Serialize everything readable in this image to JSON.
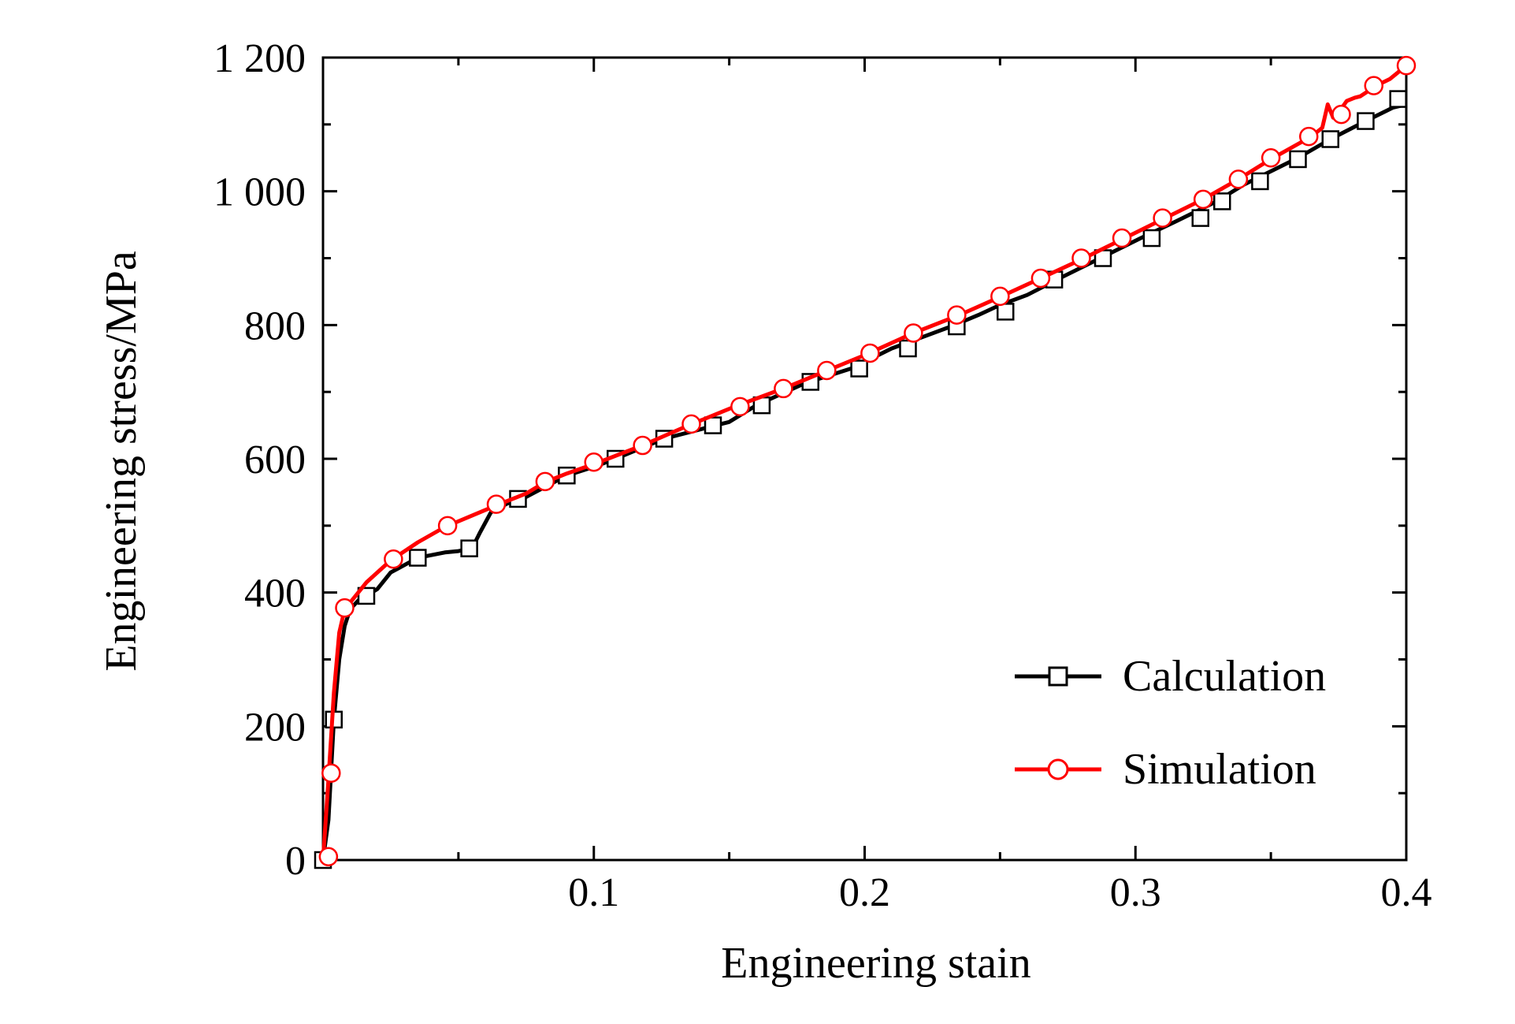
{
  "chart_data": {
    "type": "line",
    "title": "",
    "xlabel": "Engineering stain",
    "ylabel": "Engineering stress/MPa",
    "xlim": [
      0,
      0.4
    ],
    "ylim": [
      0,
      1200
    ],
    "x_ticks": [
      0.1,
      0.2,
      0.3,
      0.4
    ],
    "x_tick_labels": [
      "0.1",
      "0.2",
      "0.3",
      "0.4"
    ],
    "y_ticks": [
      0,
      200,
      400,
      600,
      800,
      1000,
      1200
    ],
    "y_tick_labels": [
      "0",
      "200",
      "400",
      "600",
      "800",
      "1 000",
      "1 200"
    ],
    "grid": false,
    "legend_position": "bottom-right",
    "series": [
      {
        "name": "Calculation",
        "color": "#000000",
        "marker": "square",
        "points": [
          [
            0.0,
            0
          ],
          [
            0.002,
            60
          ],
          [
            0.004,
            210
          ],
          [
            0.006,
            300
          ],
          [
            0.008,
            350
          ],
          [
            0.01,
            375
          ],
          [
            0.013,
            388
          ],
          [
            0.016,
            395
          ],
          [
            0.02,
            405
          ],
          [
            0.025,
            430
          ],
          [
            0.035,
            452
          ],
          [
            0.045,
            460
          ],
          [
            0.05,
            462
          ],
          [
            0.055,
            466
          ],
          [
            0.058,
            490
          ],
          [
            0.062,
            520
          ],
          [
            0.068,
            533
          ],
          [
            0.075,
            543
          ],
          [
            0.09,
            575
          ],
          [
            0.1,
            588
          ],
          [
            0.108,
            600
          ],
          [
            0.126,
            630
          ],
          [
            0.145,
            650
          ],
          [
            0.15,
            655
          ],
          [
            0.16,
            680
          ],
          [
            0.178,
            713
          ],
          [
            0.195,
            735
          ],
          [
            0.2,
            745
          ],
          [
            0.21,
            765
          ],
          [
            0.22,
            780
          ],
          [
            0.232,
            798
          ],
          [
            0.242,
            815
          ],
          [
            0.25,
            830
          ],
          [
            0.26,
            845
          ],
          [
            0.273,
            872
          ],
          [
            0.287,
            900
          ],
          [
            0.302,
            930
          ],
          [
            0.315,
            955
          ],
          [
            0.33,
            985
          ],
          [
            0.34,
            1010
          ],
          [
            0.36,
            1050
          ],
          [
            0.372,
            1078
          ],
          [
            0.385,
            1105
          ],
          [
            0.395,
            1125
          ],
          [
            0.4,
            1130
          ]
        ],
        "markers": [
          [
            0.0,
            0
          ],
          [
            0.004,
            210
          ],
          [
            0.016,
            395
          ],
          [
            0.035,
            452
          ],
          [
            0.054,
            466
          ],
          [
            0.072,
            540
          ],
          [
            0.09,
            575
          ],
          [
            0.108,
            600
          ],
          [
            0.126,
            630
          ],
          [
            0.144,
            650
          ],
          [
            0.162,
            680
          ],
          [
            0.18,
            715
          ],
          [
            0.198,
            735
          ],
          [
            0.216,
            765
          ],
          [
            0.234,
            798
          ],
          [
            0.252,
            820
          ],
          [
            0.27,
            868
          ],
          [
            0.288,
            900
          ],
          [
            0.306,
            930
          ],
          [
            0.324,
            960
          ],
          [
            0.332,
            985
          ],
          [
            0.346,
            1015
          ],
          [
            0.36,
            1048
          ],
          [
            0.372,
            1078
          ],
          [
            0.385,
            1105
          ],
          [
            0.397,
            1138
          ]
        ]
      },
      {
        "name": "Simulation",
        "color": "#ff0000",
        "marker": "circle",
        "points": [
          [
            0.0,
            0
          ],
          [
            0.002,
            120
          ],
          [
            0.004,
            250
          ],
          [
            0.006,
            340
          ],
          [
            0.008,
            375
          ],
          [
            0.012,
            395
          ],
          [
            0.016,
            415
          ],
          [
            0.025,
            448
          ],
          [
            0.035,
            475
          ],
          [
            0.045,
            498
          ],
          [
            0.055,
            515
          ],
          [
            0.065,
            532
          ],
          [
            0.075,
            548
          ],
          [
            0.082,
            565
          ],
          [
            0.09,
            578
          ],
          [
            0.1,
            592
          ],
          [
            0.118,
            620
          ],
          [
            0.135,
            650
          ],
          [
            0.152,
            678
          ],
          [
            0.17,
            705
          ],
          [
            0.185,
            730
          ],
          [
            0.2,
            755
          ],
          [
            0.218,
            788
          ],
          [
            0.235,
            815
          ],
          [
            0.25,
            842
          ],
          [
            0.265,
            870
          ],
          [
            0.28,
            898
          ],
          [
            0.295,
            928
          ],
          [
            0.31,
            958
          ],
          [
            0.325,
            988
          ],
          [
            0.338,
            1018
          ],
          [
            0.35,
            1048
          ],
          [
            0.365,
            1082
          ],
          [
            0.369,
            1095
          ],
          [
            0.371,
            1130
          ],
          [
            0.373,
            1110
          ],
          [
            0.375,
            1118
          ],
          [
            0.378,
            1135
          ],
          [
            0.381,
            1140
          ],
          [
            0.383,
            1142
          ],
          [
            0.386,
            1150
          ],
          [
            0.39,
            1160
          ],
          [
            0.394,
            1168
          ],
          [
            0.397,
            1178
          ],
          [
            0.4,
            1190
          ]
        ],
        "markers": [
          [
            0.002,
            5
          ],
          [
            0.003,
            130
          ],
          [
            0.008,
            377
          ],
          [
            0.026,
            450
          ],
          [
            0.046,
            500
          ],
          [
            0.064,
            532
          ],
          [
            0.082,
            566
          ],
          [
            0.1,
            595
          ],
          [
            0.118,
            620
          ],
          [
            0.136,
            652
          ],
          [
            0.154,
            678
          ],
          [
            0.17,
            705
          ],
          [
            0.186,
            732
          ],
          [
            0.202,
            758
          ],
          [
            0.218,
            788
          ],
          [
            0.234,
            815
          ],
          [
            0.25,
            843
          ],
          [
            0.265,
            870
          ],
          [
            0.28,
            900
          ],
          [
            0.295,
            930
          ],
          [
            0.31,
            960
          ],
          [
            0.325,
            988
          ],
          [
            0.338,
            1018
          ],
          [
            0.35,
            1050
          ],
          [
            0.364,
            1082
          ],
          [
            0.376,
            1115
          ],
          [
            0.388,
            1158
          ],
          [
            0.4,
            1188
          ]
        ]
      }
    ]
  }
}
